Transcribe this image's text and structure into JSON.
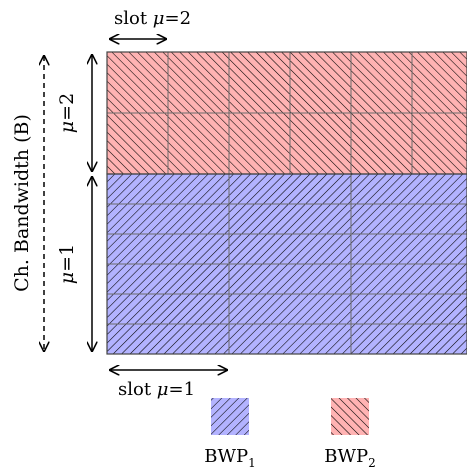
{
  "diagram": {
    "top_label": {
      "text": "slot ",
      "mu": "μ",
      "value": "=2"
    },
    "bottom_label": {
      "text": "slot ",
      "mu": "μ",
      "value": "=1"
    },
    "channel_label": "Ch. Bandwidth (B)",
    "mu2_label": {
      "mu": "μ",
      "value": "=2"
    },
    "mu1_label": {
      "mu": "μ",
      "value": "=1"
    },
    "legend": [
      {
        "name": "BWP",
        "sub": "1",
        "color": "#b3b3ff"
      },
      {
        "name": "BWP",
        "sub": "2",
        "color": "#ffb3b3"
      }
    ],
    "colors": {
      "bwp1": "#b3b3ff",
      "bwp2": "#ffb3b3",
      "hatch": "#000000",
      "grid": "#6b6b6b"
    }
  }
}
